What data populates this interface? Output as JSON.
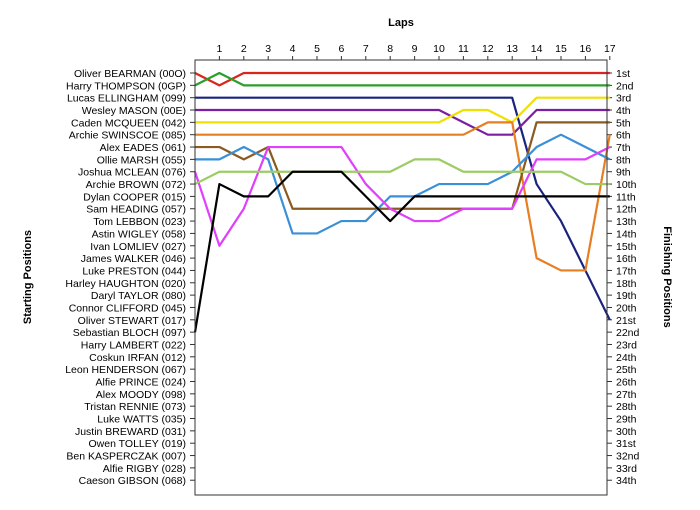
{
  "chart_data": {
    "type": "line",
    "title": "Laps",
    "ylabel_left": "Starting Positions",
    "ylabel_right": "Finishing Positions",
    "x_ticks": [
      "1",
      "2",
      "3",
      "4",
      "5",
      "6",
      "7",
      "8",
      "9",
      "10",
      "11",
      "12",
      "13",
      "14",
      "15",
      "16",
      "17"
    ],
    "y_labels_left": [
      "Oliver BEARMAN (00O)",
      "Harry THOMPSON (0GP)",
      "Lucas ELLINGHAM (099)",
      "Wesley MASON (00E)",
      "Caden MCQUEEN (042)",
      "Archie SWINSCOE (085)",
      "Alex EADES (061)",
      "Ollie MARSH (055)",
      "Joshua MCLEAN (076)",
      "Archie BROWN (072)",
      "Dylan COOPER (015)",
      "Sam HEADING (057)",
      "Tom LEBBON (023)",
      "Astin WIGLEY (058)",
      "Ivan LOMLIEV (027)",
      "James WALKER (046)",
      "Luke PRESTON (044)",
      "Harley HAUGHTON (020)",
      "Daryl TAYLOR (080)",
      "Connor CLIFFORD (045)",
      "Oliver STEWART (017)",
      "Sebastian BLOCH (097)",
      "Harry LAMBERT (022)",
      "Coskun IRFAN (012)",
      "Leon HENDERSON (067)",
      "Alfie PRINCE (024)",
      "Alex MOODY (098)",
      "Tristan RENNIE (073)",
      "Luke WATTS (035)",
      "Justin BREWARD (031)",
      "Owen TOLLEY (019)",
      "Ben KASPERCZAK (007)",
      "Alfie RIGBY (028)",
      "Caeson GIBSON (068)"
    ],
    "y_labels_right": [
      "1st",
      "2nd",
      "3rd",
      "4th",
      "5th",
      "6th",
      "7th",
      "8th",
      "9th",
      "10th",
      "11th",
      "12th",
      "13th",
      "14th",
      "15th",
      "16th",
      "17th",
      "18th",
      "19th",
      "20th",
      "21st",
      "22nd",
      "23rd",
      "24th",
      "25th",
      "26th",
      "27th",
      "28th",
      "29th",
      "30th",
      "31st",
      "32nd",
      "33rd",
      "34th"
    ],
    "series": [
      {
        "color": "#d9261c",
        "positions": [
          1,
          2,
          1,
          1,
          1,
          1,
          1,
          1,
          1,
          1,
          1,
          1,
          1,
          1,
          1,
          1,
          1,
          1
        ]
      },
      {
        "color": "#2aa02b",
        "positions": [
          2,
          1,
          2,
          2,
          2,
          2,
          2,
          2,
          2,
          2,
          2,
          2,
          2,
          2,
          2,
          2,
          2,
          2
        ]
      },
      {
        "color": "#1a237e",
        "positions": [
          3,
          3,
          3,
          3,
          3,
          3,
          3,
          3,
          3,
          3,
          3,
          3,
          3,
          3,
          10,
          13,
          17,
          21
        ]
      },
      {
        "color": "#7b1fa2",
        "positions": [
          4,
          4,
          4,
          4,
          4,
          4,
          4,
          4,
          4,
          4,
          4,
          5,
          6,
          6,
          4,
          4,
          4,
          4
        ]
      },
      {
        "color": "#f0e000",
        "positions": [
          5,
          5,
          5,
          5,
          5,
          5,
          5,
          5,
          5,
          5,
          5,
          4,
          4,
          5,
          3,
          3,
          3,
          3
        ]
      },
      {
        "color": "#e67e22",
        "positions": [
          6,
          6,
          6,
          6,
          6,
          6,
          6,
          6,
          6,
          6,
          6,
          6,
          5,
          5,
          16,
          17,
          17,
          6
        ]
      },
      {
        "color": "#8b5a1e",
        "positions": [
          7,
          7,
          8,
          7,
          12,
          12,
          12,
          12,
          12,
          12,
          12,
          12,
          12,
          12,
          5,
          5,
          5,
          5
        ]
      },
      {
        "color": "#3a8fd9",
        "positions": [
          8,
          8,
          7,
          8,
          14,
          14,
          13,
          13,
          11,
          11,
          10,
          10,
          10,
          9,
          7,
          6,
          7,
          8
        ]
      },
      {
        "color": "#e040fb",
        "positions": [
          9,
          15,
          12,
          7,
          7,
          7,
          7,
          10,
          12,
          13,
          13,
          12,
          12,
          12,
          8,
          8,
          8,
          7
        ]
      },
      {
        "color": "#9ccc65",
        "positions": [
          10,
          9,
          9,
          9,
          9,
          9,
          9,
          9,
          9,
          8,
          8,
          9,
          9,
          9,
          9,
          9,
          10,
          10
        ]
      },
      {
        "color": "#000000",
        "positions": [
          22,
          10,
          11,
          11,
          9,
          9,
          9,
          11,
          13,
          11,
          11,
          11,
          11,
          11,
          11,
          11,
          11,
          11
        ]
      }
    ],
    "ylim": [
      1,
      34
    ],
    "grid": false
  }
}
